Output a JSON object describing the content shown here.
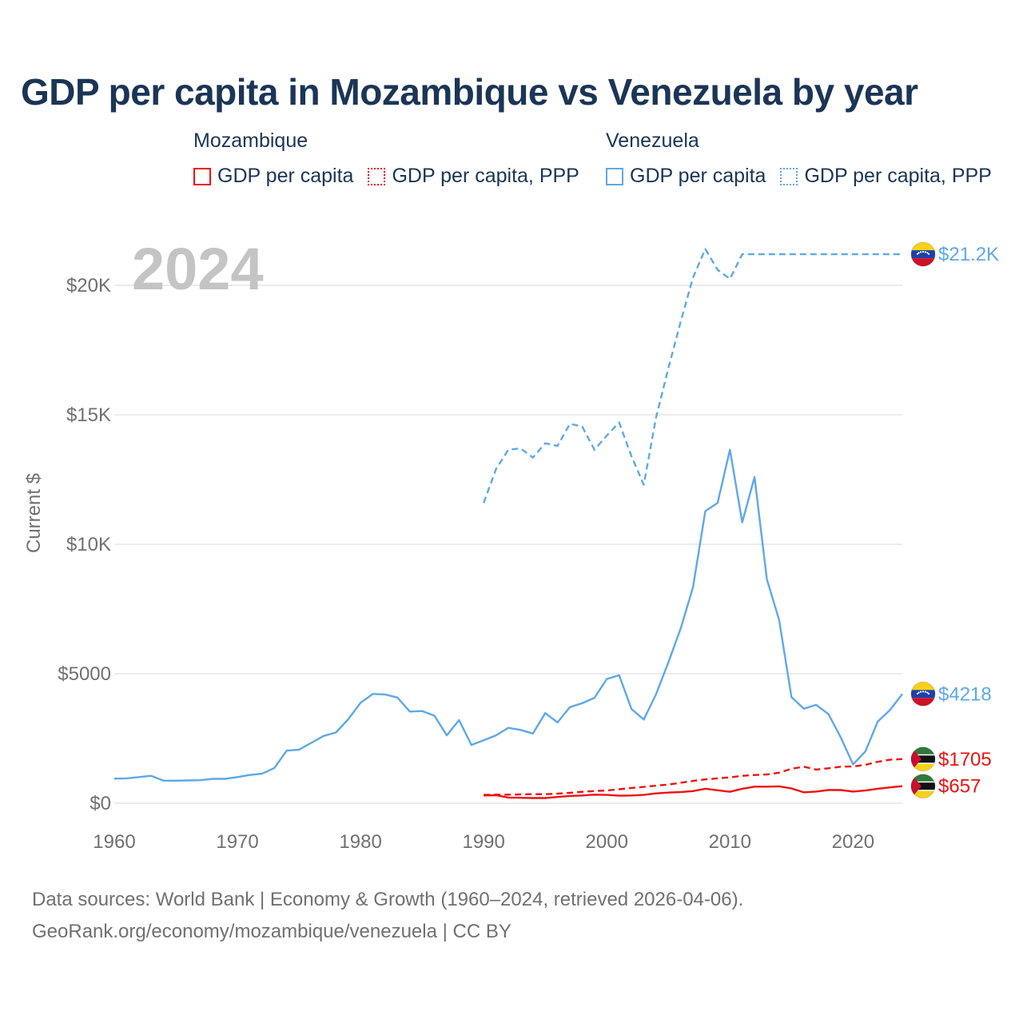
{
  "title": "GDP per capita in Mozambique vs Venezuela by year",
  "year_label": "2024",
  "legend": [
    {
      "group": "Mozambique",
      "items": [
        {
          "label": "GDP per capita",
          "style": "solid",
          "color": "#ee1111"
        },
        {
          "label": "GDP per capita, PPP",
          "style": "dotted",
          "color": "#ee1111"
        }
      ]
    },
    {
      "group": "Venezuela",
      "items": [
        {
          "label": "GDP per capita",
          "style": "solid",
          "color": "#5ea8e8"
        },
        {
          "label": "GDP per capita, PPP",
          "style": "dotted",
          "color": "#5ea8e8"
        }
      ]
    }
  ],
  "footer": {
    "line1": "Data sources: World Bank | Economy & Growth (1960–2024, retrieved 2026-04-06).",
    "line2": "GeoRank.org/economy/mozambique/venezuela | CC BY"
  },
  "chart_data": {
    "type": "line",
    "title": "GDP per capita in Mozambique vs Venezuela by year",
    "xlabel": "",
    "ylabel": "Current $",
    "xlim": [
      1960,
      2024
    ],
    "ylim": [
      0,
      22000
    ],
    "x_ticks": [
      1960,
      1970,
      1980,
      1990,
      2000,
      2010,
      2020
    ],
    "x_tick_labels": [
      "1960",
      "1970",
      "1980",
      "1990",
      "2000",
      "2010",
      "2020"
    ],
    "y_ticks": [
      0,
      5000,
      10000,
      15000,
      20000
    ],
    "y_tick_labels": [
      "$0",
      "$5000",
      "$10K",
      "$15K",
      "$20K"
    ],
    "grid": true,
    "series": [
      {
        "name": "Venezuela GDP per capita, PPP",
        "color": "#5ea8e8",
        "dash": "dashed",
        "x": [
          1990,
          1991,
          1992,
          1993,
          1994,
          1995,
          1996,
          1997,
          1998,
          1999,
          2000,
          2001,
          2002,
          2003,
          2004,
          2005,
          2006,
          2007,
          2008,
          2009,
          2010,
          2011,
          2024
        ],
        "values": [
          11600,
          12900,
          13650,
          13700,
          13350,
          13900,
          13800,
          14650,
          14550,
          13650,
          14200,
          14700,
          13400,
          12300,
          14900,
          16800,
          18600,
          20300,
          21400,
          20600,
          20250,
          21200,
          21200
        ],
        "end_label": "$21.2K"
      },
      {
        "name": "Venezuela GDP per capita",
        "color": "#5ea8e8",
        "dash": "solid",
        "x": [
          1960,
          1961,
          1962,
          1963,
          1964,
          1965,
          1966,
          1967,
          1968,
          1969,
          1970,
          1971,
          1972,
          1973,
          1974,
          1975,
          1976,
          1977,
          1978,
          1979,
          1980,
          1981,
          1982,
          1983,
          1984,
          1985,
          1986,
          1987,
          1988,
          1989,
          1990,
          1991,
          1992,
          1993,
          1994,
          1995,
          1996,
          1997,
          1998,
          1999,
          2000,
          2001,
          2002,
          2003,
          2004,
          2005,
          2006,
          2007,
          2008,
          2009,
          2010,
          2011,
          2012,
          2013,
          2014,
          2015,
          2016,
          2017,
          2018,
          2019,
          2020,
          2021,
          2022,
          2023,
          2024
        ],
        "values": [
          950,
          960,
          1010,
          1060,
          870,
          870,
          880,
          890,
          940,
          940,
          1010,
          1090,
          1140,
          1360,
          2030,
          2070,
          2330,
          2600,
          2730,
          3240,
          3880,
          4220,
          4200,
          4080,
          3540,
          3560,
          3380,
          2620,
          3210,
          2250,
          2430,
          2620,
          2910,
          2830,
          2690,
          3480,
          3120,
          3710,
          3860,
          4070,
          4800,
          4940,
          3640,
          3230,
          4210,
          5440,
          6750,
          8340,
          11280,
          11600,
          13650,
          10850,
          12600,
          8650,
          7070,
          4100,
          3650,
          3800,
          3440,
          2540,
          1500,
          2000,
          3150,
          3600,
          4218
        ],
        "end_label": "$4218"
      },
      {
        "name": "Mozambique GDP per capita, PPP",
        "color": "#ee1111",
        "dash": "dashed",
        "x": [
          1990,
          1991,
          1992,
          1993,
          1994,
          1995,
          1996,
          1997,
          1998,
          1999,
          2000,
          2001,
          2002,
          2003,
          2004,
          2005,
          2006,
          2007,
          2008,
          2009,
          2010,
          2011,
          2012,
          2013,
          2014,
          2015,
          2016,
          2017,
          2018,
          2019,
          2020,
          2021,
          2022,
          2023,
          2024
        ],
        "values": [
          320,
          330,
          330,
          340,
          350,
          350,
          370,
          400,
          440,
          470,
          490,
          540,
          590,
          630,
          680,
          720,
          790,
          860,
          920,
          960,
          1000,
          1060,
          1090,
          1110,
          1180,
          1330,
          1410,
          1300,
          1350,
          1410,
          1420,
          1480,
          1600,
          1680,
          1705
        ],
        "end_label": "$1705"
      },
      {
        "name": "Mozambique GDP per capita",
        "color": "#ee1111",
        "dash": "solid",
        "x": [
          1990,
          1991,
          1992,
          1993,
          1994,
          1995,
          1996,
          1997,
          1998,
          1999,
          2000,
          2001,
          2002,
          2003,
          2004,
          2005,
          2006,
          2007,
          2008,
          2009,
          2010,
          2011,
          2012,
          2013,
          2014,
          2015,
          2016,
          2017,
          2018,
          2019,
          2020,
          2021,
          2022,
          2023,
          2024
        ],
        "values": [
          300,
          310,
          220,
          210,
          200,
          200,
          240,
          280,
          300,
          330,
          320,
          290,
          300,
          320,
          380,
          410,
          430,
          470,
          560,
          500,
          440,
          560,
          640,
          640,
          650,
          570,
          420,
          450,
          510,
          510,
          450,
          490,
          560,
          610,
          657
        ],
        "end_label": "$657"
      }
    ]
  }
}
